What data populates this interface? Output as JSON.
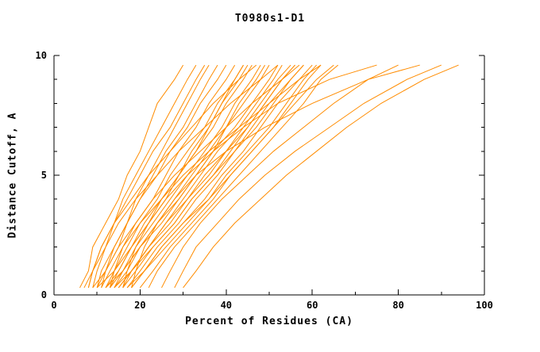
{
  "chart_data": {
    "type": "line",
    "title": "T0980s1-D1",
    "xlabel": "Percent of Residues (CA)",
    "ylabel": "Distance Cutoff, A",
    "xlim": [
      0,
      100
    ],
    "ylim": [
      0,
      10
    ],
    "x_ticks": [
      0,
      20,
      40,
      60,
      80,
      100
    ],
    "x_minor_ticks": [
      10,
      30,
      50,
      70,
      90
    ],
    "y_ticks": [
      0,
      5,
      10
    ],
    "y_minor_ticks": [
      1,
      2,
      3,
      4,
      6,
      7,
      8,
      9
    ],
    "grid": false,
    "legend": "none",
    "line_color": "#ff8c00",
    "axis_color": "#000000",
    "curve_y": [
      0.3,
      1,
      2,
      3,
      4,
      5,
      6,
      7,
      8,
      9,
      9.6
    ],
    "curves": [
      [
        6,
        8,
        9,
        12,
        15,
        17,
        20,
        22,
        24,
        28,
        30
      ],
      [
        7,
        9,
        11,
        14,
        16,
        19,
        22,
        25,
        28,
        31,
        33
      ],
      [
        8,
        9,
        12,
        14,
        17,
        20,
        23,
        27,
        30,
        33,
        35
      ],
      [
        9,
        12,
        14,
        17,
        19,
        22,
        25,
        28,
        31,
        34,
        36
      ],
      [
        10,
        12,
        15,
        17,
        20,
        23,
        26,
        30,
        33,
        36,
        38
      ],
      [
        10,
        11,
        14,
        17,
        20,
        24,
        27,
        31,
        34,
        38,
        40
      ],
      [
        11,
        13,
        16,
        19,
        23,
        26,
        29,
        33,
        36,
        40,
        42
      ],
      [
        12,
        14,
        17,
        20,
        24,
        27,
        31,
        35,
        38,
        42,
        44
      ],
      [
        12,
        15,
        18,
        22,
        25,
        29,
        32,
        36,
        39,
        43,
        45
      ],
      [
        13,
        15,
        18,
        21,
        25,
        29,
        33,
        37,
        40,
        44,
        46
      ],
      [
        13,
        16,
        19,
        23,
        27,
        31,
        35,
        39,
        42,
        46,
        48
      ],
      [
        14,
        17,
        20,
        24,
        28,
        32,
        36,
        40,
        44,
        48,
        50
      ],
      [
        14,
        16,
        20,
        24,
        29,
        33,
        37,
        42,
        46,
        50,
        52
      ],
      [
        15,
        18,
        22,
        26,
        30,
        34,
        38,
        43,
        47,
        51,
        53
      ],
      [
        15,
        18,
        22,
        27,
        31,
        35,
        40,
        44,
        48,
        52,
        55
      ],
      [
        16,
        18,
        22,
        26,
        31,
        36,
        40,
        45,
        49,
        53,
        56
      ],
      [
        16,
        19,
        23,
        28,
        32,
        37,
        42,
        46,
        50,
        55,
        58
      ],
      [
        17,
        20,
        24,
        29,
        33,
        38,
        42,
        47,
        51,
        55,
        58
      ],
      [
        17,
        21,
        25,
        30,
        35,
        39,
        44,
        48,
        52,
        57,
        60
      ],
      [
        18,
        21,
        26,
        31,
        36,
        40,
        45,
        50,
        54,
        58,
        61
      ],
      [
        18,
        21,
        25,
        30,
        36,
        41,
        46,
        51,
        55,
        59,
        62
      ],
      [
        8,
        9,
        11,
        14,
        18,
        22,
        27,
        32,
        37,
        43,
        47
      ],
      [
        9,
        10,
        12,
        15,
        19,
        24,
        29,
        35,
        41,
        48,
        52
      ],
      [
        11,
        12,
        15,
        19,
        23,
        28,
        34,
        40,
        46,
        53,
        57
      ],
      [
        13,
        14,
        16,
        20,
        25,
        30,
        36,
        43,
        50,
        57,
        62
      ],
      [
        10,
        14,
        18,
        22,
        26,
        29,
        33,
        36,
        39,
        42,
        44
      ],
      [
        12,
        16,
        20,
        25,
        29,
        33,
        37,
        40,
        43,
        47,
        49
      ],
      [
        14,
        18,
        23,
        28,
        32,
        37,
        41,
        45,
        49,
        53,
        56
      ],
      [
        20,
        23,
        27,
        32,
        37,
        41,
        46,
        51,
        56,
        61,
        65
      ],
      [
        22,
        24,
        28,
        33,
        38,
        43,
        48,
        53,
        58,
        62,
        66
      ],
      [
        25,
        27,
        30,
        34,
        39,
        45,
        51,
        58,
        65,
        73,
        80
      ],
      [
        28,
        30,
        33,
        38,
        43,
        49,
        56,
        64,
        72,
        82,
        90
      ],
      [
        30,
        33,
        37,
        42,
        48,
        54,
        61,
        68,
        76,
        86,
        94
      ],
      [
        16,
        17,
        19,
        22,
        26,
        31,
        37,
        44,
        52,
        64,
        75
      ],
      [
        18,
        19,
        21,
        24,
        28,
        33,
        40,
        49,
        60,
        73,
        85
      ]
    ]
  }
}
